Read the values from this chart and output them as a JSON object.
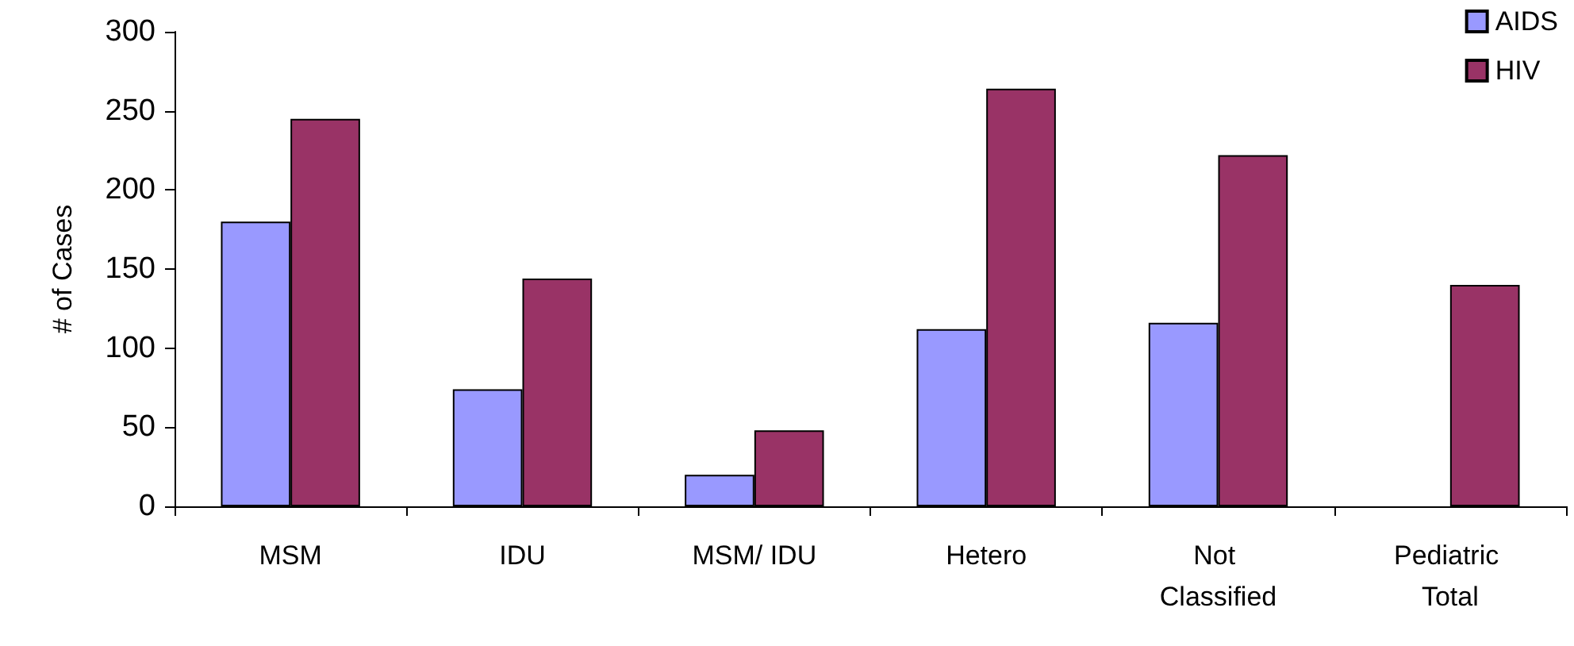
{
  "chart_data": {
    "type": "bar",
    "ylabel": "# of Cases",
    "categories": [
      "MSM",
      "IDU",
      "MSM/ IDU",
      "Hetero",
      "Not Classified",
      "Pediatric Total"
    ],
    "series": [
      {
        "name": "AIDS",
        "color": "#9999ff",
        "values": [
          180,
          74,
          20,
          112,
          116,
          null
        ]
      },
      {
        "name": "HIV",
        "color": "#993366",
        "values": [
          245,
          144,
          48,
          264,
          222,
          140
        ]
      }
    ],
    "ylim": [
      0,
      300
    ],
    "yticks": [
      0,
      50,
      100,
      150,
      200,
      250,
      300
    ],
    "grid": false,
    "legend": "top right"
  }
}
